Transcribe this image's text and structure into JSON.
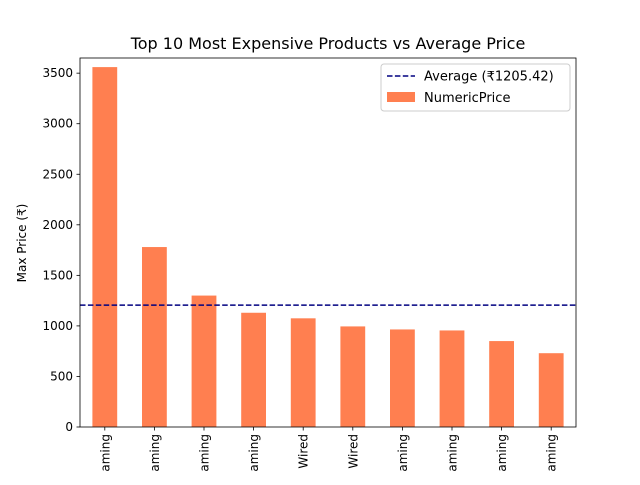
{
  "chart_data": {
    "type": "bar",
    "title": "Top 10 Most Expensive Products vs Average Price",
    "xlabel": "",
    "ylabel": "Max Price (₹)",
    "categories": [
      "aming",
      "aming",
      "aming",
      "aming",
      "Wired",
      "Wired",
      "aming",
      "aming",
      "aming",
      "aming"
    ],
    "series": [
      {
        "name": "NumericPrice",
        "color": "#ff7f50",
        "values": [
          3560,
          1780,
          1300,
          1130,
          1075,
          995,
          965,
          955,
          850,
          730
        ]
      }
    ],
    "reference_line": {
      "label": "Average (₹1205.42)",
      "value": 1205.42,
      "color": "#000080",
      "style": "dashed"
    },
    "ylim": [
      0,
      3650
    ],
    "yticks": [
      0,
      500,
      1000,
      1500,
      2000,
      2500,
      3000,
      3500
    ],
    "ytick_labels": [
      "0",
      "500",
      "1000",
      "1500",
      "2000",
      "2500",
      "3000",
      "3500"
    ],
    "legend_position": "top-right",
    "grid": false
  }
}
